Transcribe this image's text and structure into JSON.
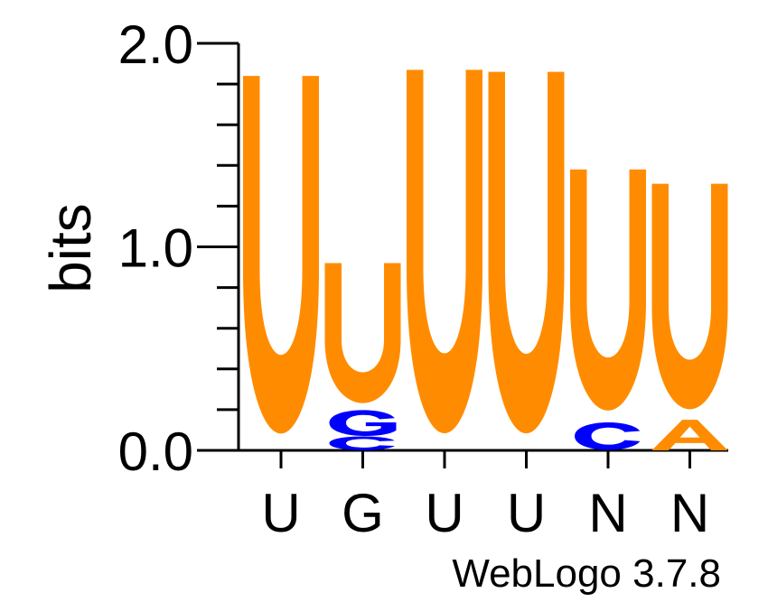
{
  "chart_data": {
    "type": "sequence-logo",
    "ylabel": "bits",
    "ylim": [
      0,
      2.0
    ],
    "y_ticks": [
      "0.0",
      "1.0",
      "2.0"
    ],
    "x_labels": [
      "U",
      "G",
      "U",
      "U",
      "N",
      "N"
    ],
    "footer": "WebLogo 3.7.8",
    "colors": {
      "U": "#ff8c00",
      "G": "#0000ff",
      "C": "#0000ff",
      "A": "#ff8c00"
    },
    "columns": [
      {
        "label": "U",
        "stack": [
          {
            "letter": "U",
            "bits": 1.84
          }
        ]
      },
      {
        "label": "G",
        "stack": [
          {
            "letter": "C",
            "bits": 0.07
          },
          {
            "letter": "G",
            "bits": 0.13
          },
          {
            "letter": "U",
            "bits": 0.72
          }
        ]
      },
      {
        "label": "U",
        "stack": [
          {
            "letter": "U",
            "bits": 1.87
          }
        ]
      },
      {
        "label": "U",
        "stack": [
          {
            "letter": "U",
            "bits": 1.86
          }
        ]
      },
      {
        "label": "N",
        "stack": [
          {
            "letter": "C",
            "bits": 0.14
          },
          {
            "letter": "U",
            "bits": 1.24
          }
        ]
      },
      {
        "label": "N",
        "stack": [
          {
            "letter": "A",
            "bits": 0.15
          },
          {
            "letter": "U",
            "bits": 1.16
          }
        ]
      }
    ]
  }
}
